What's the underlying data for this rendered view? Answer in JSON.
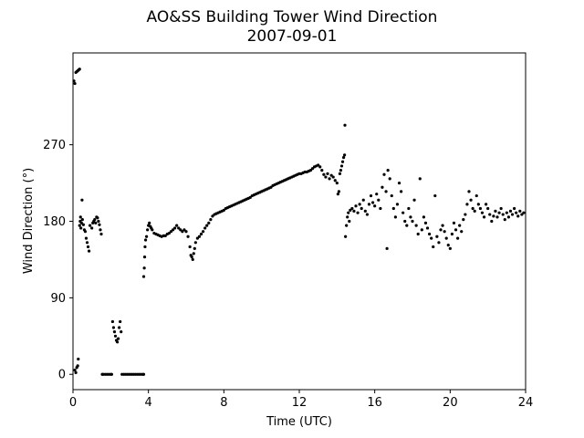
{
  "chart_data": {
    "type": "scatter",
    "title": "AO&SS Building Tower Wind Direction",
    "subtitle": "2007-09-01",
    "xlabel": "Time (UTC)",
    "ylabel": "Wind Direction (°)",
    "xlim": [
      0,
      24
    ],
    "ylim": [
      -18,
      378
    ],
    "xticks": [
      0,
      4,
      8,
      12,
      16,
      20,
      24
    ],
    "xtick_labels": [
      "0",
      "4",
      "8",
      "12",
      "16",
      "20",
      "24"
    ],
    "yticks": [
      0,
      90,
      180,
      270
    ],
    "ytick_labels": [
      "0",
      "90",
      "180",
      "270"
    ],
    "marker_color": "#000000",
    "grid": false,
    "legend": false,
    "points": [
      [
        0.05,
        345
      ],
      [
        0.1,
        342
      ],
      [
        0.15,
        355
      ],
      [
        0.2,
        356
      ],
      [
        0.25,
        357
      ],
      [
        0.3,
        358
      ],
      [
        0.35,
        359
      ],
      [
        0.1,
        5
      ],
      [
        0.15,
        2
      ],
      [
        0.2,
        8
      ],
      [
        0.25,
        10
      ],
      [
        0.28,
        18
      ],
      [
        0.35,
        175
      ],
      [
        0.38,
        180
      ],
      [
        0.4,
        185
      ],
      [
        0.42,
        172
      ],
      [
        0.45,
        178
      ],
      [
        0.48,
        205
      ],
      [
        0.5,
        182
      ],
      [
        0.55,
        176
      ],
      [
        0.6,
        170
      ],
      [
        0.65,
        168
      ],
      [
        0.7,
        160
      ],
      [
        0.75,
        155
      ],
      [
        0.8,
        150
      ],
      [
        0.85,
        145
      ],
      [
        0.9,
        175
      ],
      [
        1.0,
        172
      ],
      [
        1.05,
        178
      ],
      [
        1.1,
        180
      ],
      [
        1.15,
        182
      ],
      [
        1.2,
        178
      ],
      [
        1.25,
        185
      ],
      [
        1.3,
        184
      ],
      [
        1.35,
        180
      ],
      [
        1.4,
        176
      ],
      [
        1.45,
        170
      ],
      [
        1.5,
        165
      ],
      [
        1.55,
        0
      ],
      [
        1.6,
        0
      ],
      [
        1.7,
        0
      ],
      [
        1.8,
        0
      ],
      [
        1.9,
        0
      ],
      [
        2.0,
        0
      ],
      [
        2.05,
        0
      ],
      [
        2.1,
        62
      ],
      [
        2.15,
        55
      ],
      [
        2.2,
        50
      ],
      [
        2.25,
        45
      ],
      [
        2.3,
        40
      ],
      [
        2.35,
        38
      ],
      [
        2.4,
        42
      ],
      [
        2.45,
        55
      ],
      [
        2.5,
        62
      ],
      [
        2.55,
        50
      ],
      [
        2.6,
        0
      ],
      [
        2.7,
        0
      ],
      [
        2.8,
        0
      ],
      [
        2.9,
        0
      ],
      [
        3.0,
        0
      ],
      [
        3.1,
        0
      ],
      [
        3.2,
        0
      ],
      [
        3.3,
        0
      ],
      [
        3.4,
        0
      ],
      [
        3.5,
        0
      ],
      [
        3.6,
        0
      ],
      [
        3.7,
        0
      ],
      [
        3.75,
        0
      ],
      [
        3.75,
        115
      ],
      [
        3.78,
        125
      ],
      [
        3.8,
        138
      ],
      [
        3.82,
        150
      ],
      [
        3.85,
        158
      ],
      [
        3.9,
        162
      ],
      [
        3.95,
        170
      ],
      [
        4.0,
        175
      ],
      [
        4.05,
        178
      ],
      [
        4.1,
        174
      ],
      [
        4.15,
        172
      ],
      [
        4.2,
        170
      ],
      [
        4.3,
        166
      ],
      [
        4.4,
        165
      ],
      [
        4.5,
        164
      ],
      [
        4.6,
        163
      ],
      [
        4.7,
        162
      ],
      [
        4.8,
        163
      ],
      [
        4.9,
        163
      ],
      [
        5.0,
        165
      ],
      [
        5.1,
        166
      ],
      [
        5.2,
        168
      ],
      [
        5.3,
        170
      ],
      [
        5.4,
        172
      ],
      [
        5.5,
        175
      ],
      [
        5.6,
        172
      ],
      [
        5.7,
        170
      ],
      [
        5.8,
        168
      ],
      [
        5.9,
        170
      ],
      [
        6.0,
        168
      ],
      [
        6.1,
        162
      ],
      [
        6.2,
        150
      ],
      [
        6.25,
        140
      ],
      [
        6.3,
        138
      ],
      [
        6.35,
        135
      ],
      [
        6.4,
        142
      ],
      [
        6.45,
        148
      ],
      [
        6.5,
        155
      ],
      [
        6.6,
        160
      ],
      [
        6.7,
        162
      ],
      [
        6.8,
        165
      ],
      [
        6.9,
        168
      ],
      [
        7.0,
        172
      ],
      [
        7.1,
        175
      ],
      [
        7.2,
        178
      ],
      [
        7.3,
        182
      ],
      [
        7.4,
        186
      ],
      [
        7.5,
        188
      ],
      [
        7.6,
        189
      ],
      [
        7.7,
        190
      ],
      [
        7.8,
        191
      ],
      [
        7.9,
        192
      ],
      [
        8.0,
        193
      ],
      [
        8.1,
        195
      ],
      [
        8.2,
        196
      ],
      [
        8.3,
        197
      ],
      [
        8.4,
        198
      ],
      [
        8.5,
        199
      ],
      [
        8.6,
        200
      ],
      [
        8.7,
        201
      ],
      [
        8.8,
        202
      ],
      [
        8.9,
        203
      ],
      [
        9.0,
        204
      ],
      [
        9.1,
        205
      ],
      [
        9.2,
        206
      ],
      [
        9.3,
        207
      ],
      [
        9.4,
        208
      ],
      [
        9.5,
        210
      ],
      [
        9.6,
        211
      ],
      [
        9.7,
        212
      ],
      [
        9.8,
        213
      ],
      [
        9.9,
        214
      ],
      [
        10.0,
        215
      ],
      [
        10.1,
        216
      ],
      [
        10.2,
        217
      ],
      [
        10.3,
        218
      ],
      [
        10.4,
        219
      ],
      [
        10.5,
        220
      ],
      [
        10.6,
        222
      ],
      [
        10.7,
        223
      ],
      [
        10.8,
        224
      ],
      [
        10.9,
        225
      ],
      [
        11.0,
        226
      ],
      [
        11.1,
        227
      ],
      [
        11.2,
        228
      ],
      [
        11.3,
        229
      ],
      [
        11.4,
        230
      ],
      [
        11.5,
        231
      ],
      [
        11.6,
        232
      ],
      [
        11.7,
        233
      ],
      [
        11.8,
        234
      ],
      [
        11.9,
        235
      ],
      [
        12.0,
        236
      ],
      [
        12.1,
        236
      ],
      [
        12.2,
        237
      ],
      [
        12.3,
        238
      ],
      [
        12.4,
        238
      ],
      [
        12.5,
        239
      ],
      [
        12.6,
        240
      ],
      [
        12.7,
        242
      ],
      [
        12.8,
        244
      ],
      [
        12.9,
        245
      ],
      [
        13.0,
        246
      ],
      [
        13.1,
        244
      ],
      [
        13.2,
        240
      ],
      [
        13.3,
        235
      ],
      [
        13.4,
        232
      ],
      [
        13.5,
        236
      ],
      [
        13.6,
        230
      ],
      [
        13.7,
        234
      ],
      [
        13.8,
        232
      ],
      [
        13.9,
        228
      ],
      [
        14.0,
        225
      ],
      [
        14.05,
        212
      ],
      [
        14.1,
        215
      ],
      [
        14.15,
        236
      ],
      [
        14.2,
        240
      ],
      [
        14.25,
        245
      ],
      [
        14.3,
        250
      ],
      [
        14.35,
        255
      ],
      [
        14.4,
        258
      ],
      [
        14.42,
        293
      ],
      [
        14.45,
        162
      ],
      [
        14.5,
        175
      ],
      [
        14.55,
        185
      ],
      [
        14.6,
        190
      ],
      [
        14.65,
        180
      ],
      [
        14.7,
        193
      ],
      [
        14.8,
        195
      ],
      [
        14.9,
        192
      ],
      [
        15.0,
        198
      ],
      [
        15.1,
        190
      ],
      [
        15.2,
        200
      ],
      [
        15.3,
        195
      ],
      [
        15.4,
        205
      ],
      [
        15.5,
        192
      ],
      [
        15.6,
        188
      ],
      [
        15.7,
        200
      ],
      [
        15.8,
        210
      ],
      [
        15.9,
        202
      ],
      [
        16.0,
        198
      ],
      [
        16.1,
        212
      ],
      [
        16.2,
        205
      ],
      [
        16.3,
        195
      ],
      [
        16.4,
        220
      ],
      [
        16.5,
        235
      ],
      [
        16.6,
        215
      ],
      [
        16.65,
        148
      ],
      [
        16.7,
        240
      ],
      [
        16.8,
        230
      ],
      [
        16.9,
        210
      ],
      [
        17.0,
        195
      ],
      [
        17.1,
        185
      ],
      [
        17.2,
        200
      ],
      [
        17.3,
        225
      ],
      [
        17.4,
        215
      ],
      [
        17.5,
        190
      ],
      [
        17.6,
        180
      ],
      [
        17.7,
        175
      ],
      [
        17.8,
        195
      ],
      [
        17.9,
        185
      ],
      [
        18.0,
        180
      ],
      [
        18.1,
        205
      ],
      [
        18.2,
        175
      ],
      [
        18.3,
        165
      ],
      [
        18.4,
        230
      ],
      [
        18.5,
        170
      ],
      [
        18.6,
        185
      ],
      [
        18.7,
        178
      ],
      [
        18.8,
        172
      ],
      [
        18.9,
        165
      ],
      [
        19.0,
        160
      ],
      [
        19.1,
        150
      ],
      [
        19.2,
        210
      ],
      [
        19.3,
        162
      ],
      [
        19.4,
        155
      ],
      [
        19.5,
        170
      ],
      [
        19.6,
        175
      ],
      [
        19.7,
        168
      ],
      [
        19.8,
        160
      ],
      [
        19.9,
        152
      ],
      [
        20.0,
        148
      ],
      [
        20.1,
        165
      ],
      [
        20.2,
        178
      ],
      [
        20.3,
        170
      ],
      [
        20.4,
        160
      ],
      [
        20.5,
        175
      ],
      [
        20.6,
        168
      ],
      [
        20.7,
        182
      ],
      [
        20.8,
        188
      ],
      [
        20.9,
        200
      ],
      [
        21.0,
        215
      ],
      [
        21.1,
        205
      ],
      [
        21.2,
        195
      ],
      [
        21.3,
        192
      ],
      [
        21.4,
        210
      ],
      [
        21.5,
        200
      ],
      [
        21.6,
        195
      ],
      [
        21.7,
        190
      ],
      [
        21.8,
        185
      ],
      [
        21.9,
        200
      ],
      [
        22.0,
        195
      ],
      [
        22.1,
        188
      ],
      [
        22.2,
        180
      ],
      [
        22.3,
        186
      ],
      [
        22.4,
        192
      ],
      [
        22.5,
        185
      ],
      [
        22.6,
        190
      ],
      [
        22.7,
        195
      ],
      [
        22.8,
        188
      ],
      [
        22.9,
        182
      ],
      [
        23.0,
        190
      ],
      [
        23.1,
        185
      ],
      [
        23.2,
        192
      ],
      [
        23.3,
        188
      ],
      [
        23.4,
        195
      ],
      [
        23.5,
        190
      ],
      [
        23.6,
        186
      ],
      [
        23.7,
        192
      ],
      [
        23.8,
        188
      ],
      [
        23.9,
        190
      ]
    ]
  }
}
